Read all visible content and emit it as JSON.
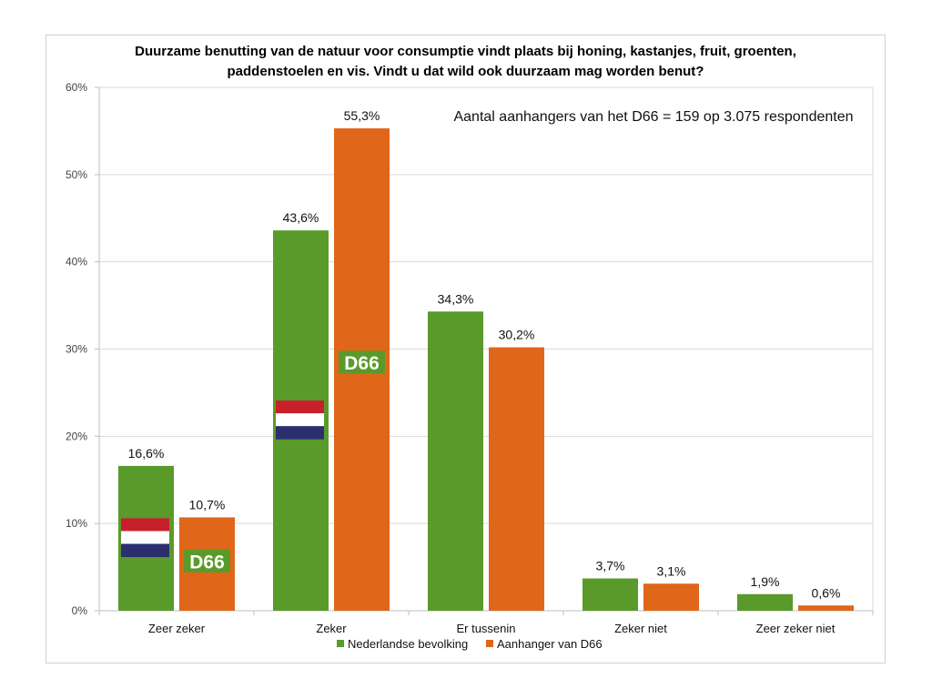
{
  "chart_data": {
    "type": "bar",
    "title_lines": [
      "Duurzame benutting van de natuur voor consumptie vindt plaats bij honing, kastanjes, fruit, groenten,",
      "paddenstoelen en vis. Vindt u dat wild ook duurzaam mag worden benut?"
    ],
    "annotation": "Aantal aanhangers van het D66 = 159 op 3.075 respondenten",
    "categories": [
      "Zeer zeker",
      "Zeker",
      "Er tussenin",
      "Zeker niet",
      "Zeer zeker niet"
    ],
    "series": [
      {
        "name": "Nederlandse bevolking",
        "color": "#5a9a2a",
        "values": [
          16.6,
          43.6,
          34.3,
          3.7,
          1.9
        ],
        "labels": [
          "16,6%",
          "43,6%",
          "34,3%",
          "3,7%",
          "1,9%"
        ]
      },
      {
        "name": "Aanhanger van D66",
        "color": "#e0661a",
        "values": [
          10.7,
          55.3,
          30.2,
          3.1,
          0.6
        ],
        "labels": [
          "10,7%",
          "55,3%",
          "30,2%",
          "3,1%",
          "0,6%"
        ]
      }
    ],
    "xlabel": "",
    "ylabel": "",
    "ylim": [
      0,
      60
    ],
    "yticks": [
      0,
      10,
      20,
      30,
      40,
      50,
      60
    ],
    "ytick_labels": [
      "0%",
      "10%",
      "20%",
      "30%",
      "40%",
      "50%",
      "60%"
    ],
    "grid": true,
    "legend_position": "bottom",
    "overlays": [
      {
        "type": "dutch-flag",
        "category": 0,
        "series": 0,
        "top_value": 10.6,
        "bottom_value": 6.2
      },
      {
        "type": "d66-badge",
        "category": 0,
        "series": 1,
        "text": "D66",
        "top_value": 7.0,
        "bottom_value": 4.4
      },
      {
        "type": "dutch-flag",
        "category": 1,
        "series": 0,
        "top_value": 24.1,
        "bottom_value": 19.7
      },
      {
        "type": "d66-badge",
        "category": 1,
        "series": 1,
        "text": "D66",
        "top_value": 29.8,
        "bottom_value": 27.2
      }
    ],
    "flag_colors": [
      "#c8202a",
      "#ffffff",
      "#2b2f6e"
    ],
    "badge_color": "#5a9a2a"
  }
}
